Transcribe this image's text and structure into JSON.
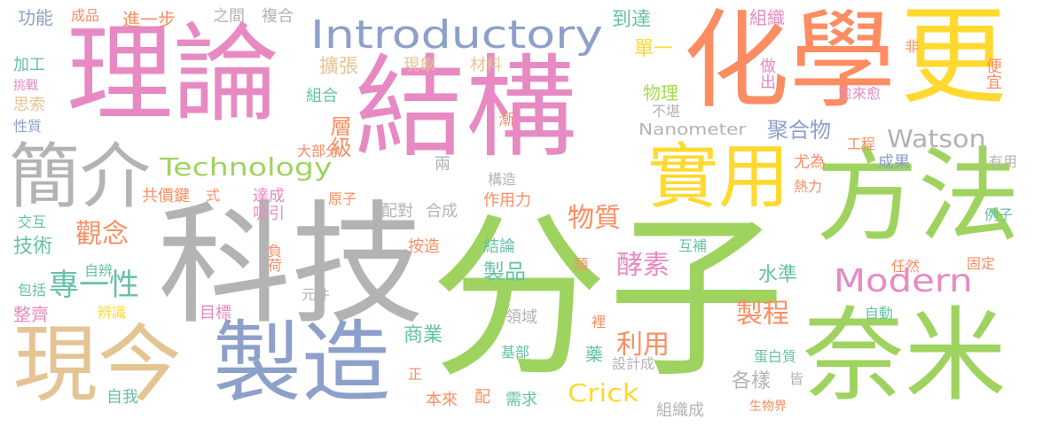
{
  "palette": {
    "green": "#9fd35f",
    "gray": "#b3b3b3",
    "pink": "#e78ac3",
    "orange": "#fc8d62",
    "yellow": "#ffd92f",
    "blue": "#8da0cb",
    "tan": "#e5c494",
    "teal": "#66c2a5",
    "lime": "#a6d854"
  },
  "words": [
    {
      "text": "分子",
      "color": "green"
    },
    {
      "text": "科技",
      "color": "gray"
    },
    {
      "text": "結構",
      "color": "pink"
    },
    {
      "text": "理論",
      "color": "pink"
    },
    {
      "text": "化學",
      "color": "orange"
    },
    {
      "text": "更",
      "color": "yellow"
    },
    {
      "text": "方法",
      "color": "green"
    },
    {
      "text": "奈米",
      "color": "green"
    },
    {
      "text": "製造",
      "color": "blue"
    },
    {
      "text": "現今",
      "color": "tan"
    },
    {
      "text": "實用",
      "color": "yellow"
    },
    {
      "text": "簡介",
      "color": "gray"
    },
    {
      "text": "Introductory",
      "color": "blue"
    },
    {
      "text": "Modern",
      "color": "pink"
    },
    {
      "text": "Watson",
      "color": "gray"
    },
    {
      "text": "Technology",
      "color": "green"
    },
    {
      "text": "Crick",
      "color": "yellow"
    },
    {
      "text": "Nanometer",
      "color": "gray"
    },
    {
      "text": "專一性",
      "color": "teal"
    },
    {
      "text": "觀念",
      "color": "orange"
    },
    {
      "text": "物質",
      "color": "orange"
    },
    {
      "text": "酵素",
      "color": "pink"
    },
    {
      "text": "利用",
      "color": "orange"
    },
    {
      "text": "製程",
      "color": "orange"
    },
    {
      "text": "聚合物",
      "color": "blue"
    },
    {
      "text": "層級",
      "color": "orange"
    },
    {
      "text": "製品",
      "color": "teal"
    },
    {
      "text": "水準",
      "color": "teal"
    },
    {
      "text": "各樣",
      "color": "gray"
    },
    {
      "text": "商業",
      "color": "teal"
    },
    {
      "text": "到達",
      "color": "teal"
    },
    {
      "text": "單一",
      "color": "yellow"
    },
    {
      "text": "組織",
      "color": "pink"
    },
    {
      "text": "進一步",
      "color": "orange"
    },
    {
      "text": "擴張",
      "color": "tan"
    },
    {
      "text": "現象",
      "color": "tan"
    },
    {
      "text": "材料",
      "color": "tan"
    },
    {
      "text": "組合",
      "color": "teal"
    },
    {
      "text": "物理",
      "color": "lime"
    },
    {
      "text": "不堪",
      "color": "gray"
    },
    {
      "text": "做出",
      "color": "pink"
    },
    {
      "text": "愈來愈",
      "color": "pink"
    },
    {
      "text": "便宜",
      "color": "orange"
    },
    {
      "text": "非",
      "color": "orange"
    },
    {
      "text": "功能",
      "color": "blue"
    },
    {
      "text": "成品",
      "color": "orange"
    },
    {
      "text": "之間",
      "color": "gray"
    },
    {
      "text": "複合",
      "color": "gray"
    },
    {
      "text": "加工",
      "color": "teal"
    },
    {
      "text": "挑戰",
      "color": "pink"
    },
    {
      "text": "思索",
      "color": "tan"
    },
    {
      "text": "性質",
      "color": "blue"
    },
    {
      "text": "漸",
      "color": "orange"
    },
    {
      "text": "大部分",
      "color": "orange"
    },
    {
      "text": "兩",
      "color": "gray"
    },
    {
      "text": "構造",
      "color": "gray"
    },
    {
      "text": "共價鍵",
      "color": "orange"
    },
    {
      "text": "式",
      "color": "orange"
    },
    {
      "text": "達成",
      "color": "pink"
    },
    {
      "text": "吸引",
      "color": "pink"
    },
    {
      "text": "原子",
      "color": "orange"
    },
    {
      "text": "配對",
      "color": "gray"
    },
    {
      "text": "合成",
      "color": "gray"
    },
    {
      "text": "作用力",
      "color": "orange"
    },
    {
      "text": "工程",
      "color": "orange"
    },
    {
      "text": "尤為",
      "color": "orange"
    },
    {
      "text": "成果",
      "color": "blue"
    },
    {
      "text": "熱力",
      "color": "orange"
    },
    {
      "text": "有用",
      "color": "gray"
    },
    {
      "text": "例子",
      "color": "teal"
    },
    {
      "text": "交互",
      "color": "teal"
    },
    {
      "text": "技術",
      "color": "teal"
    },
    {
      "text": "自辨",
      "color": "teal"
    },
    {
      "text": "包括",
      "color": "teal"
    },
    {
      "text": "整齊",
      "color": "pink"
    },
    {
      "text": "辨識",
      "color": "yellow"
    },
    {
      "text": "目標",
      "color": "pink"
    },
    {
      "text": "負荷",
      "color": "orange"
    },
    {
      "text": "元件",
      "color": "gray"
    },
    {
      "text": "按造",
      "color": "orange"
    },
    {
      "text": "結論",
      "color": "teal"
    },
    {
      "text": "類",
      "color": "orange"
    },
    {
      "text": "互補",
      "color": "teal"
    },
    {
      "text": "任然",
      "color": "orange"
    },
    {
      "text": "固定",
      "color": "orange"
    },
    {
      "text": "自動",
      "color": "teal"
    },
    {
      "text": "領域",
      "color": "gray"
    },
    {
      "text": "基部",
      "color": "teal"
    },
    {
      "text": "藥",
      "color": "teal"
    },
    {
      "text": "裡",
      "color": "orange"
    },
    {
      "text": "設計成",
      "color": "gray"
    },
    {
      "text": "蛋白質",
      "color": "teal"
    },
    {
      "text": "皆",
      "color": "gray"
    },
    {
      "text": "正",
      "color": "orange"
    },
    {
      "text": "本來",
      "color": "orange"
    },
    {
      "text": "配",
      "color": "orange"
    },
    {
      "text": "需求",
      "color": "teal"
    },
    {
      "text": "組織成",
      "color": "gray"
    },
    {
      "text": "生物界",
      "color": "orange"
    },
    {
      "text": "自我",
      "color": "teal"
    }
  ]
}
